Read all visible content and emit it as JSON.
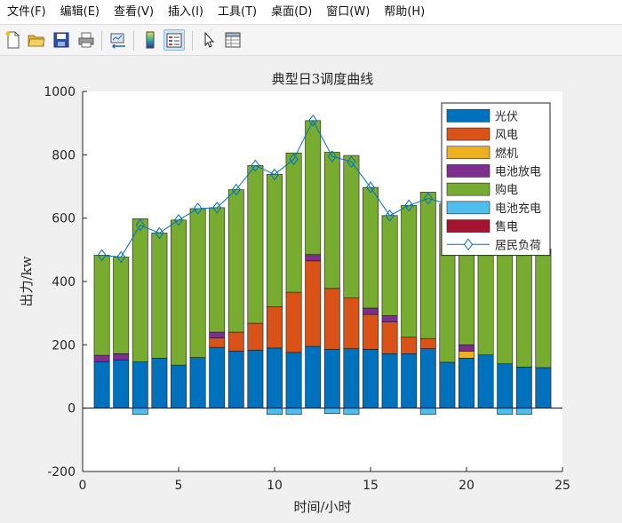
{
  "menu": [
    "文件(F)",
    "编辑(E)",
    "查看(V)",
    "插入(I)",
    "工具(T)",
    "桌面(D)",
    "窗口(W)",
    "帮助(H)"
  ],
  "toolbar_icons": [
    "new-figure-icon",
    "open-file-icon",
    "save-icon",
    "print-icon",
    "link-plot-icon",
    "insert-colorbar-icon",
    "insert-legend-icon",
    "edit-plot-cursor-icon",
    "property-editor-icon"
  ],
  "colors": {
    "pv": "#0072BD",
    "wind": "#D95319",
    "gas": "#EDB120",
    "discharge": "#7E2F8E",
    "buy": "#77AC30",
    "charge": "#4DBEEE",
    "sell": "#A2142F",
    "load": "#0072BD"
  },
  "chart_data": {
    "type": "bar",
    "stacked": true,
    "title": "典型日3调度曲线",
    "xlabel": "时间/小时",
    "ylabel": "出力/kw",
    "xlim": [
      0,
      25
    ],
    "ylim": [
      -200,
      1000
    ],
    "xticks": [
      0,
      5,
      10,
      15,
      20,
      25
    ],
    "yticks": [
      -200,
      0,
      200,
      400,
      600,
      800,
      1000
    ],
    "legend_position": "top-right",
    "categories": [
      1,
      2,
      3,
      4,
      5,
      6,
      7,
      8,
      9,
      10,
      11,
      12,
      13,
      14,
      15,
      16,
      17,
      18,
      19,
      20,
      21,
      22,
      23,
      24
    ],
    "series": [
      {
        "name": "光伏",
        "key": "pv",
        "values": [
          147,
          152,
          146,
          158,
          136,
          160,
          192,
          180,
          183,
          190,
          176,
          195,
          186,
          188,
          186,
          172,
          172,
          188,
          145,
          158,
          168,
          140,
          130,
          128
        ]
      },
      {
        "name": "风电",
        "key": "wind",
        "values": [
          0,
          0,
          0,
          0,
          0,
          0,
          30,
          60,
          85,
          130,
          190,
          270,
          192,
          160,
          110,
          100,
          52,
          32,
          0,
          0,
          0,
          0,
          0,
          0
        ]
      },
      {
        "name": "燃机",
        "key": "gas",
        "values": [
          0,
          0,
          0,
          0,
          0,
          0,
          0,
          0,
          0,
          0,
          0,
          0,
          0,
          0,
          0,
          0,
          0,
          0,
          0,
          22,
          0,
          0,
          0,
          0
        ]
      },
      {
        "name": "电池放电",
        "key": "discharge",
        "values": [
          20,
          20,
          0,
          0,
          0,
          0,
          18,
          0,
          0,
          0,
          0,
          20,
          0,
          0,
          20,
          20,
          0,
          0,
          0,
          20,
          0,
          0,
          0,
          0
        ]
      },
      {
        "name": "购电",
        "key": "buy",
        "values": [
          316,
          305,
          452,
          395,
          458,
          470,
          393,
          450,
          498,
          418,
          440,
          423,
          430,
          450,
          381,
          316,
          416,
          462,
          500,
          420,
          460,
          480,
          450,
          375
        ]
      },
      {
        "name": "电池充电",
        "key": "charge",
        "values": [
          0,
          0,
          -20,
          0,
          0,
          0,
          0,
          0,
          0,
          -20,
          -20,
          0,
          -17,
          -20,
          0,
          0,
          0,
          -20,
          0,
          0,
          0,
          -20,
          -20,
          0
        ]
      },
      {
        "name": "售电",
        "key": "sell",
        "values": [
          0,
          0,
          0,
          0,
          0,
          0,
          0,
          0,
          0,
          0,
          0,
          0,
          0,
          0,
          0,
          0,
          0,
          0,
          0,
          0,
          0,
          0,
          0,
          0
        ]
      }
    ],
    "line": {
      "name": "居民负荷",
      "key": "load",
      "marker": "diamond",
      "values": [
        483,
        477,
        578,
        553,
        594,
        630,
        633,
        690,
        766,
        738,
        786,
        908,
        795,
        778,
        697,
        608,
        640,
        662,
        645,
        600,
        628,
        620,
        580,
        503
      ]
    }
  }
}
